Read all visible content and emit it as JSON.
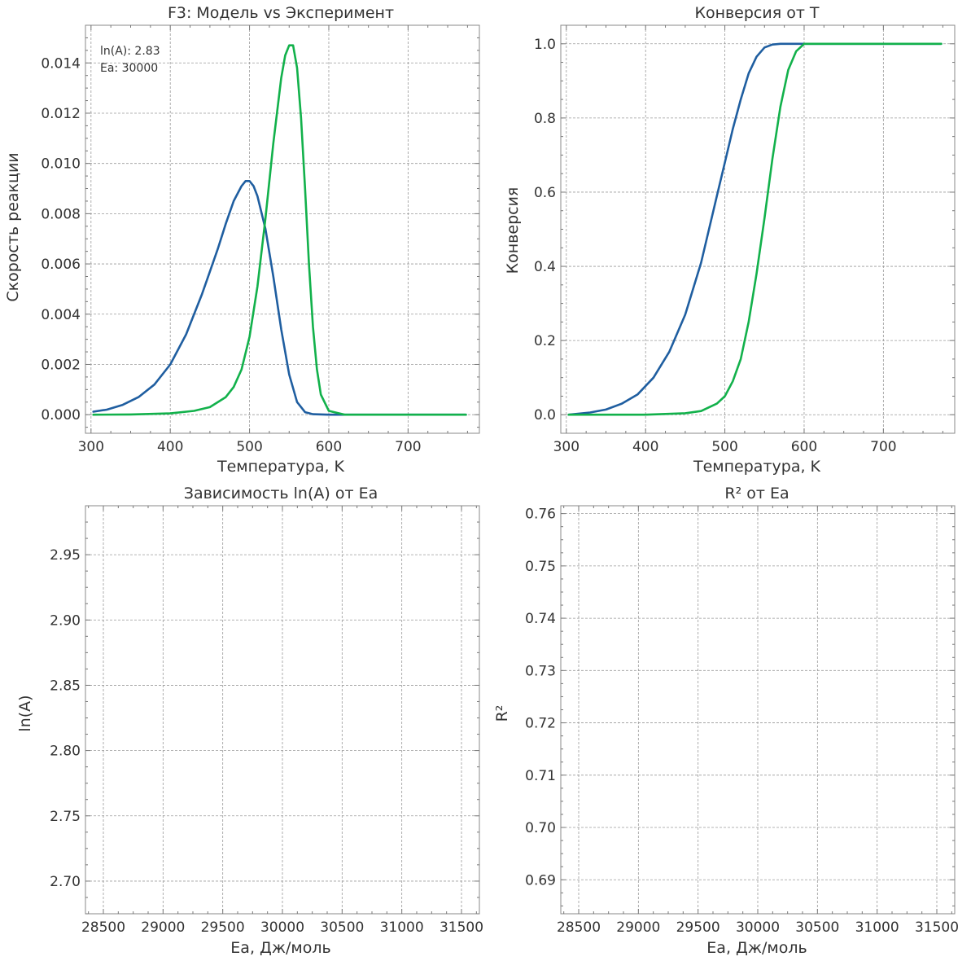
{
  "chart_data": [
    {
      "id": "rate",
      "type": "line",
      "title": "F3: Модель vs Эксперимент",
      "xlabel": "Температура, K",
      "ylabel": "Скорость реакции",
      "xlim": [
        293,
        790
      ],
      "ylim": [
        -0.00074,
        0.0155
      ],
      "xticks": [
        300,
        400,
        500,
        600,
        700
      ],
      "yticks": [
        0.0,
        0.002,
        0.004,
        0.006,
        0.008,
        0.01,
        0.012,
        0.014
      ],
      "ytick_decimals": 3,
      "grid": true,
      "annotation": [
        "ln(A): 2.83",
        "Ea: 30000"
      ],
      "series": [
        {
          "color": "#1f5ea0",
          "x": [
            303,
            320,
            340,
            360,
            380,
            400,
            420,
            440,
            460,
            470,
            480,
            490,
            495,
            500,
            505,
            510,
            520,
            530,
            540,
            550,
            560,
            570,
            580,
            600,
            650,
            700,
            773
          ],
          "y": [
            0.00012,
            0.0002,
            0.00039,
            0.0007,
            0.0012,
            0.002,
            0.0032,
            0.0048,
            0.0066,
            0.0076,
            0.0085,
            0.0091,
            0.0093,
            0.0093,
            0.0091,
            0.0087,
            0.0074,
            0.0055,
            0.0034,
            0.0016,
            0.0005,
            0.0001,
            2e-05,
            0.0,
            0.0,
            0.0,
            0.0
          ]
        },
        {
          "color": "#12b14b",
          "x": [
            303,
            350,
            400,
            430,
            450,
            470,
            480,
            490,
            500,
            510,
            520,
            530,
            540,
            545,
            550,
            555,
            560,
            565,
            570,
            575,
            580,
            585,
            590,
            600,
            620,
            650,
            700,
            773
          ],
          "y": [
            0.0,
            1e-05,
            5e-05,
            0.00015,
            0.0003,
            0.0007,
            0.0011,
            0.0018,
            0.0031,
            0.0051,
            0.0078,
            0.0108,
            0.0134,
            0.0143,
            0.0147,
            0.0147,
            0.0138,
            0.0118,
            0.009,
            0.006,
            0.0035,
            0.0018,
            0.0008,
            0.00015,
            0.0,
            0.0,
            0.0,
            0.0
          ]
        }
      ]
    },
    {
      "id": "conv",
      "type": "line",
      "title": "Конверсия от T",
      "xlabel": "Температура, K",
      "ylabel": "Конверсия",
      "xlim": [
        293,
        790
      ],
      "ylim": [
        -0.05,
        1.05
      ],
      "xticks": [
        300,
        400,
        500,
        600,
        700
      ],
      "yticks": [
        0.0,
        0.2,
        0.4,
        0.6,
        0.8,
        1.0
      ],
      "ytick_decimals": 1,
      "grid": true,
      "series": [
        {
          "color": "#1f5ea0",
          "x": [
            303,
            330,
            350,
            370,
            390,
            410,
            430,
            450,
            470,
            480,
            490,
            500,
            510,
            520,
            530,
            540,
            550,
            560,
            570,
            580,
            600,
            650,
            700,
            773
          ],
          "y": [
            0.0,
            0.006,
            0.014,
            0.03,
            0.055,
            0.1,
            0.17,
            0.27,
            0.41,
            0.5,
            0.59,
            0.68,
            0.77,
            0.85,
            0.92,
            0.965,
            0.99,
            0.998,
            1.0,
            1.0,
            1.0,
            1.0,
            1.0,
            1.0
          ]
        },
        {
          "color": "#12b14b",
          "x": [
            303,
            400,
            450,
            470,
            490,
            500,
            510,
            520,
            530,
            540,
            550,
            560,
            570,
            580,
            590,
            600,
            650,
            700,
            773
          ],
          "y": [
            0.0,
            0.0,
            0.004,
            0.01,
            0.03,
            0.05,
            0.09,
            0.15,
            0.25,
            0.38,
            0.53,
            0.69,
            0.83,
            0.93,
            0.98,
            1.0,
            1.0,
            1.0,
            1.0
          ]
        }
      ]
    },
    {
      "id": "lnA",
      "type": "line",
      "title": "Зависимость ln(A) от Ea",
      "xlabel": "Ea, Дж/моль",
      "ylabel": "ln(A)",
      "xlim": [
        28350,
        31650
      ],
      "ylim": [
        2.675,
        2.9875
      ],
      "xticks": [
        28500,
        29000,
        29500,
        30000,
        30500,
        31000,
        31500
      ],
      "yticks": [
        2.7,
        2.75,
        2.8,
        2.85,
        2.9,
        2.95
      ],
      "ytick_decimals": 2,
      "grid": true,
      "series": []
    },
    {
      "id": "r2",
      "type": "line",
      "title": "R² от Ea",
      "xlabel": "Ea, Дж/моль",
      "ylabel": "R²",
      "xlim": [
        28350,
        31650
      ],
      "ylim": [
        0.6835,
        0.7615
      ],
      "xticks": [
        28500,
        29000,
        29500,
        30000,
        30500,
        31000,
        31500
      ],
      "yticks": [
        0.69,
        0.7,
        0.71,
        0.72,
        0.73,
        0.74,
        0.75,
        0.76
      ],
      "ytick_decimals": 2,
      "grid": true,
      "series": []
    }
  ]
}
